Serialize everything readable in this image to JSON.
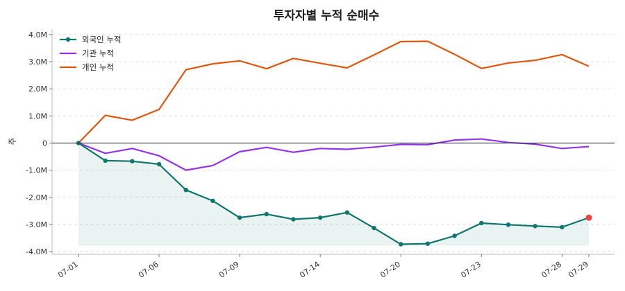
{
  "chart_data": {
    "type": "line",
    "title": "투자자별 누적 순매수",
    "xlabel": "",
    "ylabel": "주",
    "ylim": [
      -4100000,
      4200000
    ],
    "yticks": [
      4000000,
      3000000,
      2000000,
      1000000,
      0,
      -1000000,
      -2000000,
      -3000000,
      -4000000
    ],
    "ytick_labels": [
      "4.0M",
      "3.0M",
      "2.0M",
      "1.0M",
      "0",
      "-1.0M",
      "-2.0M",
      "-3.0M",
      "-4.0M"
    ],
    "x": [
      "07-01",
      "07-02",
      "07-03",
      "07-06",
      "07-07",
      "07-08",
      "07-09",
      "07-10",
      "07-13",
      "07-14",
      "07-15",
      "07-16",
      "07-20",
      "07-21",
      "07-22",
      "07-23",
      "07-24",
      "07-27",
      "07-28",
      "07-29"
    ],
    "xtick_labels": [
      "07-01",
      "07-06",
      "07-09",
      "07-14",
      "07-20",
      "07-23",
      "07-28",
      "07-29"
    ],
    "grid": "horizontal-dashed",
    "legend": "top-left",
    "series": [
      {
        "name": "외국인 누적",
        "color": "#0f766e",
        "markers": true,
        "fill": true,
        "values": [
          0,
          -650000,
          -670000,
          -780000,
          -1730000,
          -2130000,
          -2750000,
          -2620000,
          -2810000,
          -2750000,
          -2560000,
          -3130000,
          -3730000,
          -3710000,
          -3420000,
          -2950000,
          -3010000,
          -3060000,
          -3100000,
          -2750000
        ]
      },
      {
        "name": "기관 누적",
        "color": "#9333ea",
        "markers": false,
        "fill": false,
        "values": [
          0,
          -380000,
          -200000,
          -470000,
          -1000000,
          -830000,
          -320000,
          -160000,
          -340000,
          -200000,
          -230000,
          -150000,
          -50000,
          -60000,
          110000,
          150000,
          20000,
          -40000,
          -200000,
          -130000
        ]
      },
      {
        "name": "개인 누적",
        "color": "#e0570f",
        "markers": false,
        "fill": false,
        "values": [
          0,
          1020000,
          840000,
          1240000,
          2700000,
          2920000,
          3030000,
          2740000,
          3120000,
          2940000,
          2770000,
          3250000,
          3740000,
          3750000,
          3270000,
          2750000,
          2950000,
          3050000,
          3260000,
          2830000
        ]
      }
    ],
    "highlight_last_point_color": "#ef4444",
    "zero_line_color": "#2f3545"
  }
}
